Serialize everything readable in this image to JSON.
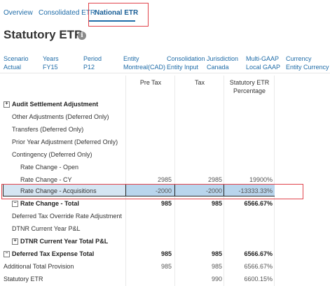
{
  "tabs": [
    {
      "label": "Overview"
    },
    {
      "label": "Consolidated ETR"
    },
    {
      "label": "National ETR"
    }
  ],
  "page": {
    "title": "Statutory ETR",
    "info_icon": "info-icon"
  },
  "pov": [
    {
      "label": "Scenario",
      "value": "Actual"
    },
    {
      "label": "Years",
      "value": "FY15"
    },
    {
      "label": "Period",
      "value": "P12"
    },
    {
      "label": "Entity",
      "value": "Montreal(CAD)"
    },
    {
      "label": "Consolidation",
      "value": "Entity Input"
    },
    {
      "label": "Jurisdiction",
      "value": "Canada"
    },
    {
      "label": "Multi-GAAP",
      "value": "Local GAAP"
    },
    {
      "label": "Currency",
      "value": "Entity Currency"
    }
  ],
  "columns": {
    "c1": "Pre Tax",
    "c2": "Tax",
    "c3a": "Statutory ETR",
    "c3b": "Percentage"
  },
  "rows": [
    {
      "label": "Audit Settlement Adjustment",
      "bold": true,
      "expander": "+",
      "v1": "",
      "v2": "",
      "v3": ""
    },
    {
      "label": "Other Adjustments (Deferred Only)",
      "v1": "",
      "v2": "",
      "v3": ""
    },
    {
      "label": "Transfers (Deferred Only)",
      "v1": "",
      "v2": "",
      "v3": ""
    },
    {
      "label": "Prior Year Adjustment (Deferred Only)",
      "v1": "",
      "v2": "",
      "v3": ""
    },
    {
      "label": "Contingency (Deferred Only)",
      "v1": "",
      "v2": "",
      "v3": ""
    },
    {
      "label": "Rate Change - Open",
      "v1": "",
      "v2": "",
      "v3": ""
    },
    {
      "label": "Rate Change - CY",
      "v1": "2985",
      "v2": "2985",
      "v3": "19900%"
    },
    {
      "label": "Rate Change - Acquisitions",
      "v1": "-2000",
      "v2": "-2000",
      "v3": "-13333.33%"
    },
    {
      "label": "Rate Change - Total",
      "bold": true,
      "expander": "−",
      "v1": "985",
      "v2": "985",
      "v3": "6566.67%"
    },
    {
      "label": "Deferred Tax Override Rate Adjustment",
      "v1": "",
      "v2": "",
      "v3": ""
    },
    {
      "label": "DTNR Current Year P&L",
      "v1": "",
      "v2": "",
      "v3": ""
    },
    {
      "label": "DTNR Current Year Total P&L",
      "bold": true,
      "expander": "+",
      "v1": "",
      "v2": "",
      "v3": ""
    },
    {
      "label": "Deferred Tax Expense Total",
      "bold": true,
      "expander": "−",
      "v1": "985",
      "v2": "985",
      "v3": "6566.67%"
    },
    {
      "label": "Additional Total Provision",
      "v1": "985",
      "v2": "985",
      "v3": "6566.67%"
    },
    {
      "label": "Statutory ETR",
      "v1": "",
      "v2": "990",
      "v3": "6600.15%"
    }
  ]
}
